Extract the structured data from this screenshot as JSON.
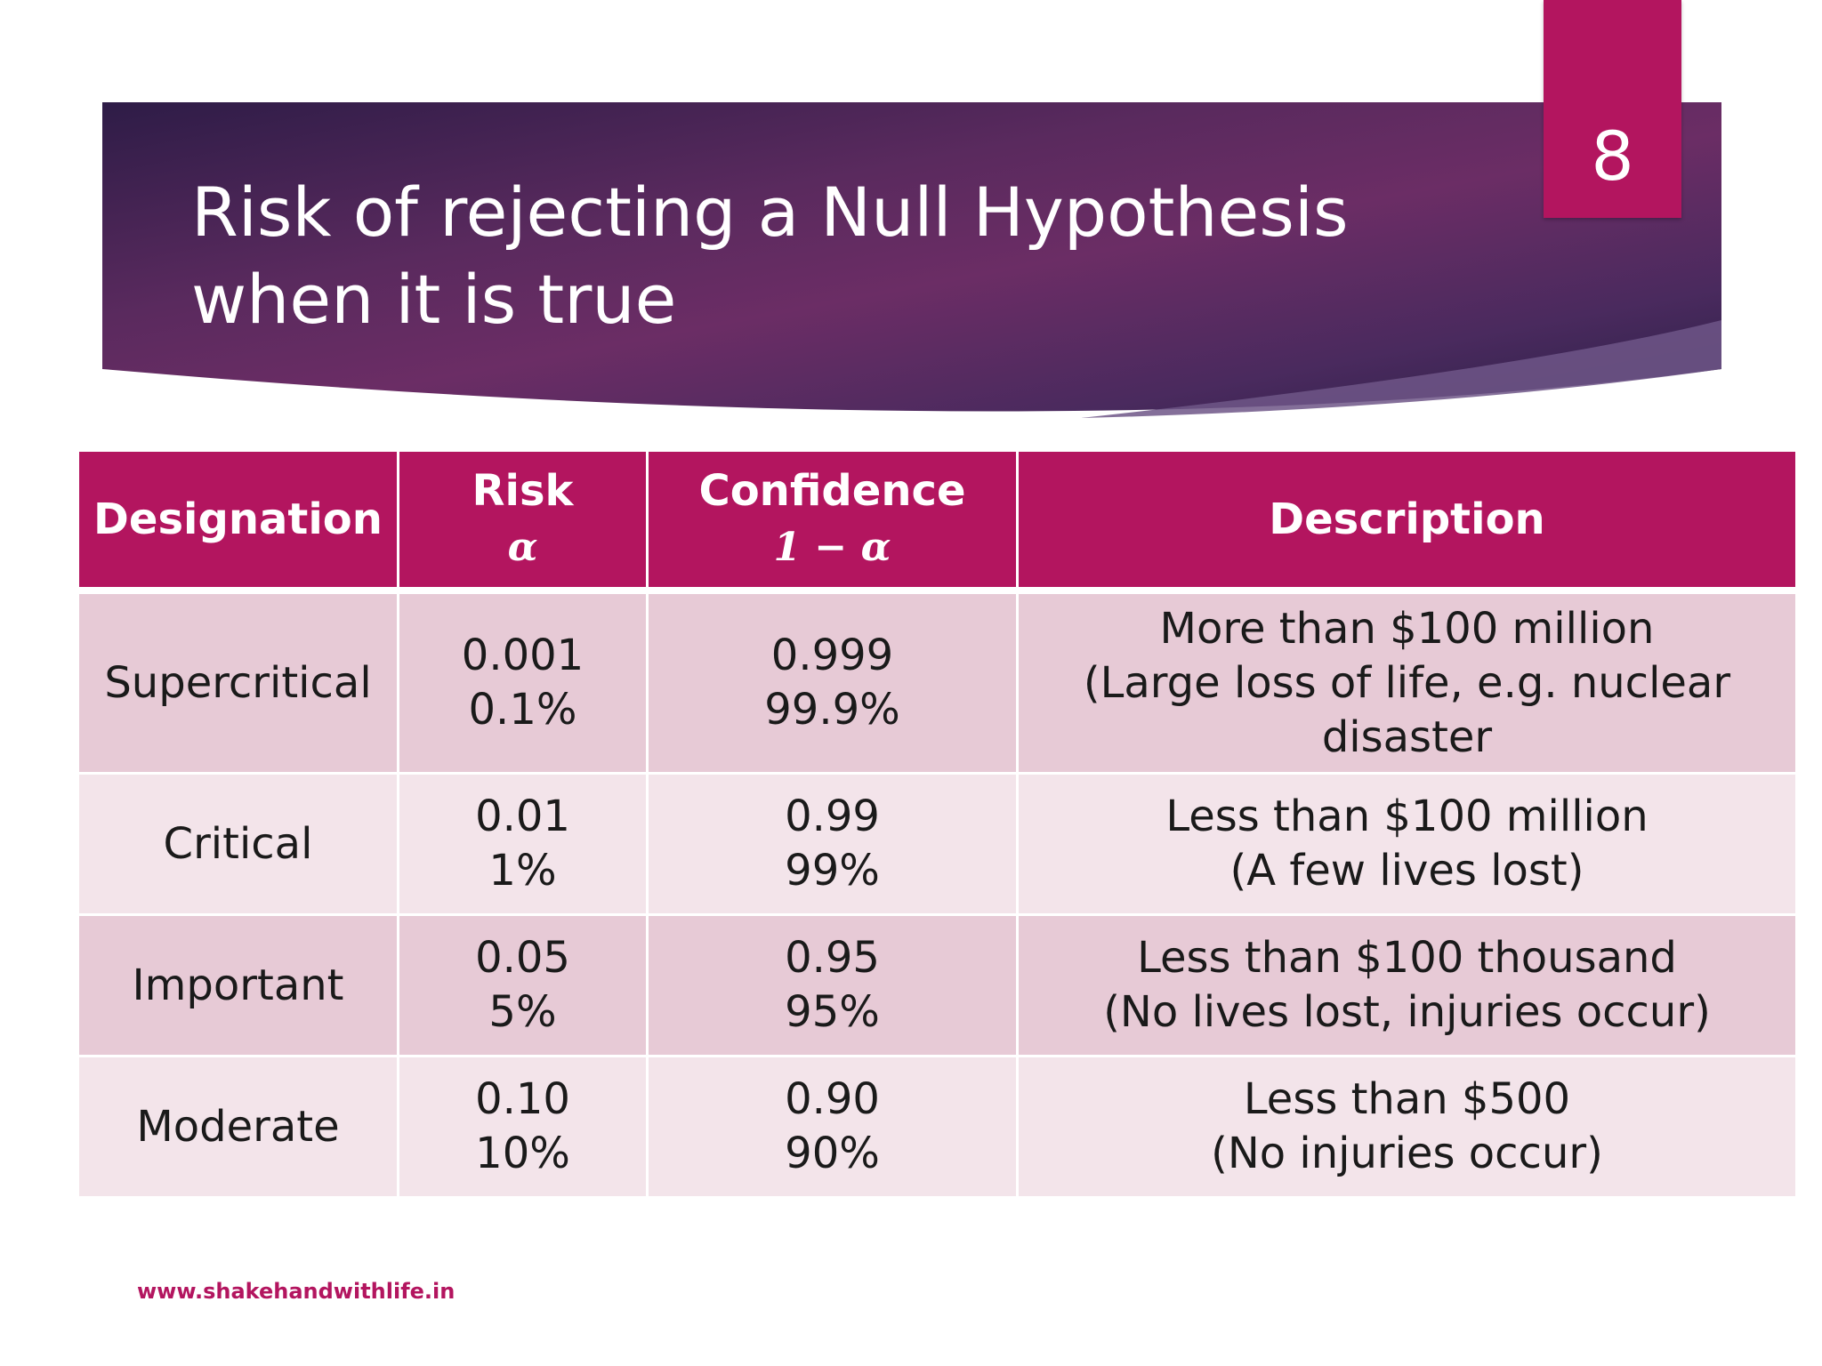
{
  "slide": {
    "title_line1": "Risk of rejecting a Null Hypothesis",
    "title_line2": "when it is true",
    "page_number": "8",
    "footer_url": "www.shakehandwithlife.in",
    "colors": {
      "accent": "#b3155f",
      "banner_dark": "#3a1f4f",
      "banner_mid": "#6b2a62",
      "row_dark": "#e7cad6",
      "row_light": "#f3e4ea"
    }
  },
  "table": {
    "headers": [
      {
        "label": "Designation",
        "symbol": ""
      },
      {
        "label": "Risk",
        "symbol": "α"
      },
      {
        "label": "Confidence",
        "symbol": "1 − α"
      },
      {
        "label": "Description",
        "symbol": ""
      }
    ],
    "rows": [
      {
        "designation": "Supercritical",
        "risk": [
          "0.001",
          "0.1%"
        ],
        "confidence": [
          "0.999",
          "99.9%"
        ],
        "description": [
          "More than $100 million",
          "(Large loss of life, e.g. nuclear",
          "disaster"
        ]
      },
      {
        "designation": "Critical",
        "risk": [
          "0.01",
          "1%"
        ],
        "confidence": [
          "0.99",
          "99%"
        ],
        "description": [
          "Less than $100 million",
          "(A few lives lost)"
        ]
      },
      {
        "designation": "Important",
        "risk": [
          "0.05",
          "5%"
        ],
        "confidence": [
          "0.95",
          "95%"
        ],
        "description": [
          "Less than $100 thousand",
          "(No lives lost, injuries occur)"
        ]
      },
      {
        "designation": "Moderate",
        "risk": [
          "0.10",
          "10%"
        ],
        "confidence": [
          "0.90",
          "90%"
        ],
        "description": [
          "Less than $500",
          "(No injuries occur)"
        ]
      }
    ]
  }
}
